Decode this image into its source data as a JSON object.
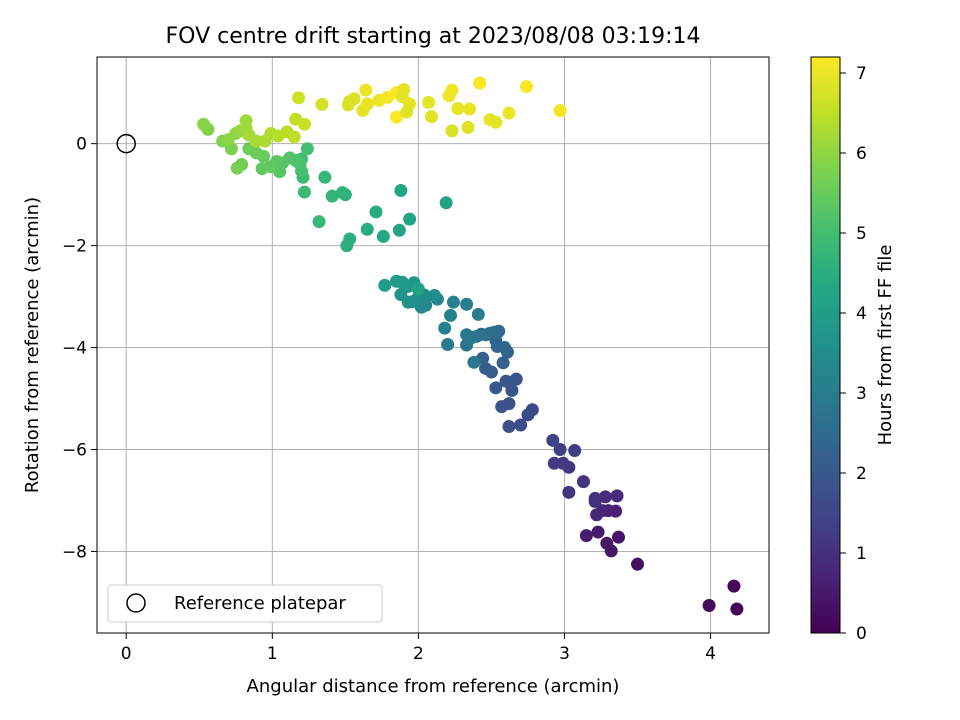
{
  "chart_data": {
    "type": "scatter",
    "title": "FOV centre drift starting at 2023/08/08 03:19:14",
    "xlabel": "Angular distance from reference (arcmin)",
    "ylabel": "Rotation from reference (arcmin)",
    "xlim": [
      -0.2,
      4.4
    ],
    "ylim": [
      -9.6,
      1.7
    ],
    "xticks": [
      0,
      1,
      2,
      3,
      4
    ],
    "yticks": [
      -8,
      -6,
      -4,
      -2,
      0
    ],
    "grid": true,
    "colormap": "viridis",
    "colorbar": {
      "label": "Hours from first FF file",
      "range": [
        0,
        7.2
      ],
      "ticks": [
        0,
        1,
        2,
        3,
        4,
        5,
        6,
        7
      ]
    },
    "legend": {
      "placement": "lower-left",
      "entries": [
        "Reference platepar"
      ]
    },
    "reference_point": {
      "x": 0,
      "y": 0,
      "label": "Reference platepar"
    },
    "points": [
      [
        4.18,
        -9.13,
        0.05
      ],
      [
        4.16,
        -8.68,
        0.1
      ],
      [
        3.99,
        -9.06,
        0.15
      ],
      [
        3.5,
        -8.25,
        0.3
      ],
      [
        3.37,
        -7.72,
        0.4
      ],
      [
        3.32,
        -7.99,
        0.45
      ],
      [
        3.29,
        -7.84,
        0.5
      ],
      [
        3.23,
        -7.62,
        0.55
      ],
      [
        3.15,
        -7.69,
        0.6
      ],
      [
        3.35,
        -7.21,
        0.65
      ],
      [
        3.3,
        -7.2,
        0.7
      ],
      [
        3.26,
        -7.2,
        0.75
      ],
      [
        3.22,
        -7.28,
        0.8
      ],
      [
        3.36,
        -6.91,
        0.85
      ],
      [
        3.28,
        -6.93,
        0.9
      ],
      [
        3.21,
        -6.96,
        0.95
      ],
      [
        3.21,
        -7.02,
        1.0
      ],
      [
        3.13,
        -6.63,
        1.05
      ],
      [
        3.03,
        -6.84,
        1.1
      ],
      [
        3.03,
        -6.35,
        1.15
      ],
      [
        2.99,
        -6.27,
        1.2
      ],
      [
        2.93,
        -6.27,
        1.25
      ],
      [
        3.07,
        -6.02,
        1.3
      ],
      [
        2.97,
        -6.0,
        1.35
      ],
      [
        2.92,
        -5.82,
        1.4
      ],
      [
        2.78,
        -5.22,
        1.55
      ],
      [
        2.75,
        -5.32,
        1.6
      ],
      [
        2.7,
        -5.52,
        1.65
      ],
      [
        2.62,
        -5.55,
        1.7
      ],
      [
        2.62,
        -5.1,
        1.75
      ],
      [
        2.57,
        -5.16,
        1.8
      ],
      [
        2.67,
        -4.62,
        1.85
      ],
      [
        2.64,
        -4.84,
        1.9
      ],
      [
        2.6,
        -4.66,
        1.95
      ],
      [
        2.53,
        -4.79,
        2.0
      ],
      [
        2.5,
        -4.48,
        2.05
      ],
      [
        2.46,
        -4.41,
        2.1
      ],
      [
        2.44,
        -4.21,
        2.15
      ],
      [
        2.58,
        -4.3,
        2.2
      ],
      [
        2.61,
        -4.09,
        2.25
      ],
      [
        2.54,
        -3.98,
        2.3
      ],
      [
        2.59,
        -4.0,
        2.35
      ],
      [
        2.53,
        -3.86,
        2.4
      ],
      [
        2.55,
        -3.68,
        2.45
      ],
      [
        2.52,
        -3.7,
        2.5
      ],
      [
        2.49,
        -3.72,
        2.55
      ],
      [
        2.46,
        -3.75,
        2.6
      ],
      [
        2.43,
        -3.74,
        2.65
      ],
      [
        2.4,
        -3.78,
        2.7
      ],
      [
        2.37,
        -3.8,
        2.75
      ],
      [
        2.33,
        -3.95,
        2.8
      ],
      [
        2.33,
        -3.75,
        2.85
      ],
      [
        2.38,
        -4.29,
        2.9
      ],
      [
        2.2,
        -3.94,
        2.95
      ],
      [
        2.41,
        -3.35,
        3.0
      ],
      [
        2.33,
        -3.15,
        3.05
      ],
      [
        2.24,
        -3.11,
        3.1
      ],
      [
        2.22,
        -3.37,
        3.15
      ],
      [
        2.18,
        -3.62,
        3.2
      ],
      [
        2.13,
        -3.05,
        3.25
      ],
      [
        2.05,
        -3.17,
        3.3
      ],
      [
        2.02,
        -3.21,
        3.35
      ],
      [
        2.04,
        -3.02,
        3.4
      ],
      [
        2.11,
        -2.98,
        3.45
      ],
      [
        2.04,
        -2.97,
        3.5
      ],
      [
        2.0,
        -3.01,
        3.55
      ],
      [
        1.96,
        -3.1,
        3.6
      ],
      [
        1.93,
        -3.11,
        3.65
      ],
      [
        1.88,
        -2.96,
        3.7
      ],
      [
        1.97,
        -2.73,
        3.75
      ],
      [
        1.93,
        -2.8,
        3.8
      ],
      [
        1.89,
        -2.72,
        3.85
      ],
      [
        1.85,
        -2.7,
        3.9
      ],
      [
        1.77,
        -2.78,
        3.95
      ],
      [
        2.0,
        -2.85,
        4.1
      ],
      [
        2.19,
        -1.16,
        4.15
      ],
      [
        1.87,
        -1.7,
        4.2
      ],
      [
        1.94,
        -1.48,
        4.25
      ],
      [
        1.88,
        -0.92,
        4.3
      ],
      [
        1.76,
        -1.82,
        4.35
      ],
      [
        1.71,
        -1.34,
        4.4
      ],
      [
        1.65,
        -1.68,
        4.45
      ],
      [
        1.53,
        -1.87,
        4.5
      ],
      [
        1.51,
        -2.0,
        4.55
      ],
      [
        1.5,
        -1.0,
        4.6
      ],
      [
        1.48,
        -0.96,
        4.65
      ],
      [
        1.41,
        -1.03,
        4.7
      ],
      [
        1.36,
        -0.66,
        4.75
      ],
      [
        1.32,
        -1.53,
        4.8
      ],
      [
        1.22,
        -0.95,
        4.85
      ],
      [
        1.21,
        -0.66,
        4.9
      ],
      [
        1.2,
        -0.3,
        4.95
      ],
      [
        1.24,
        -0.1,
        5.0
      ],
      [
        1.2,
        -0.54,
        5.05
      ],
      [
        1.19,
        -0.4,
        5.1
      ],
      [
        1.16,
        -0.33,
        5.15
      ],
      [
        1.12,
        -0.28,
        5.2
      ],
      [
        1.07,
        -0.38,
        5.25
      ],
      [
        1.05,
        -0.55,
        5.3
      ],
      [
        1.03,
        -0.35,
        5.35
      ],
      [
        0.99,
        -0.45,
        5.4
      ],
      [
        0.93,
        -0.49,
        5.45
      ],
      [
        0.94,
        -0.25,
        5.5
      ],
      [
        0.89,
        -0.18,
        5.55
      ],
      [
        0.84,
        -0.1,
        5.6
      ],
      [
        0.79,
        -0.41,
        5.65
      ],
      [
        0.76,
        -0.48,
        5.7
      ],
      [
        0.72,
        -0.1,
        5.75
      ],
      [
        0.66,
        0.05,
        5.8
      ],
      [
        0.56,
        0.28,
        5.85
      ],
      [
        0.53,
        0.38,
        5.9
      ],
      [
        0.7,
        0.08,
        5.95
      ],
      [
        0.75,
        0.2,
        6.0
      ],
      [
        0.78,
        0.25,
        6.05
      ],
      [
        0.82,
        0.3,
        6.1
      ],
      [
        0.82,
        0.45,
        6.15
      ],
      [
        0.84,
        0.17,
        6.2
      ],
      [
        0.89,
        0.05,
        6.25
      ],
      [
        0.95,
        0.05,
        6.3
      ],
      [
        0.99,
        0.2,
        6.35
      ],
      [
        1.04,
        0.15,
        6.4
      ],
      [
        1.1,
        0.23,
        6.45
      ],
      [
        1.15,
        0.13,
        6.5
      ],
      [
        1.16,
        0.48,
        6.55
      ],
      [
        1.22,
        0.38,
        6.6
      ],
      [
        1.18,
        0.9,
        6.65
      ],
      [
        1.34,
        0.77,
        6.7
      ],
      [
        1.53,
        0.83,
        6.75
      ],
      [
        1.52,
        0.76,
        6.8
      ],
      [
        1.56,
        0.88,
        6.85
      ],
      [
        1.62,
        0.65,
        6.9
      ],
      [
        1.65,
        0.78,
        6.95
      ],
      [
        1.64,
        1.05,
        7.0
      ],
      [
        1.73,
        0.85,
        7.05
      ],
      [
        1.79,
        0.91,
        7.1
      ],
      [
        1.85,
        0.52,
        7.15
      ],
      [
        1.85,
        1.0,
        7.2
      ]
    ],
    "points_late": [
      [
        1.9,
        1.06,
        6.95
      ],
      [
        1.89,
        0.92,
        6.9
      ],
      [
        1.94,
        0.78,
        6.95
      ],
      [
        1.92,
        0.62,
        6.85
      ],
      [
        2.07,
        0.81,
        6.9
      ],
      [
        2.09,
        0.53,
        6.85
      ],
      [
        2.21,
        0.94,
        7.05
      ],
      [
        2.23,
        1.05,
        7.05
      ],
      [
        2.23,
        0.25,
        6.8
      ],
      [
        2.27,
        0.69,
        6.95
      ],
      [
        2.34,
        0.32,
        6.85
      ],
      [
        2.35,
        0.68,
        6.95
      ],
      [
        2.42,
        1.19,
        7.15
      ],
      [
        2.49,
        0.47,
        6.95
      ],
      [
        2.53,
        0.42,
        6.9
      ],
      [
        2.62,
        0.6,
        7.0
      ],
      [
        2.74,
        1.12,
        7.15
      ],
      [
        2.97,
        0.65,
        7.05
      ]
    ]
  }
}
